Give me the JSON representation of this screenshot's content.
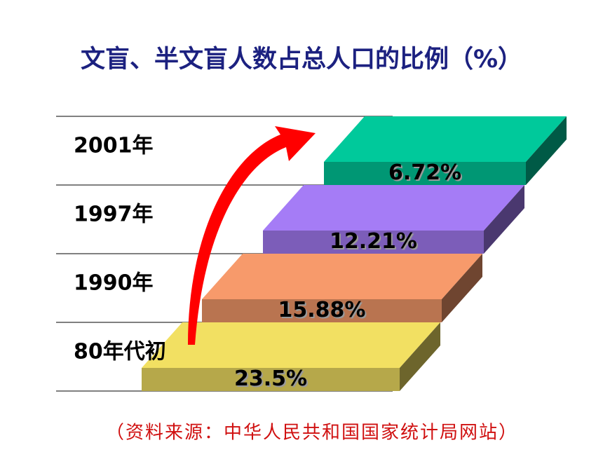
{
  "chart_data": {
    "type": "bar",
    "title": "文盲、半文盲人数占总人口的比例（%）",
    "source": "（资料来源：中华人民共和国国家统计局网站）",
    "categories": [
      "80年代初",
      "1990年",
      "1997年",
      "2001年"
    ],
    "values": [
      23.5,
      15.88,
      12.21,
      6.72
    ],
    "value_labels": [
      "23.5%",
      "15.88%",
      "12.21%",
      "6.72%"
    ],
    "colors": [
      "#f2e062",
      "#f79a6b",
      "#a57cf6",
      "#00c99b"
    ]
  }
}
